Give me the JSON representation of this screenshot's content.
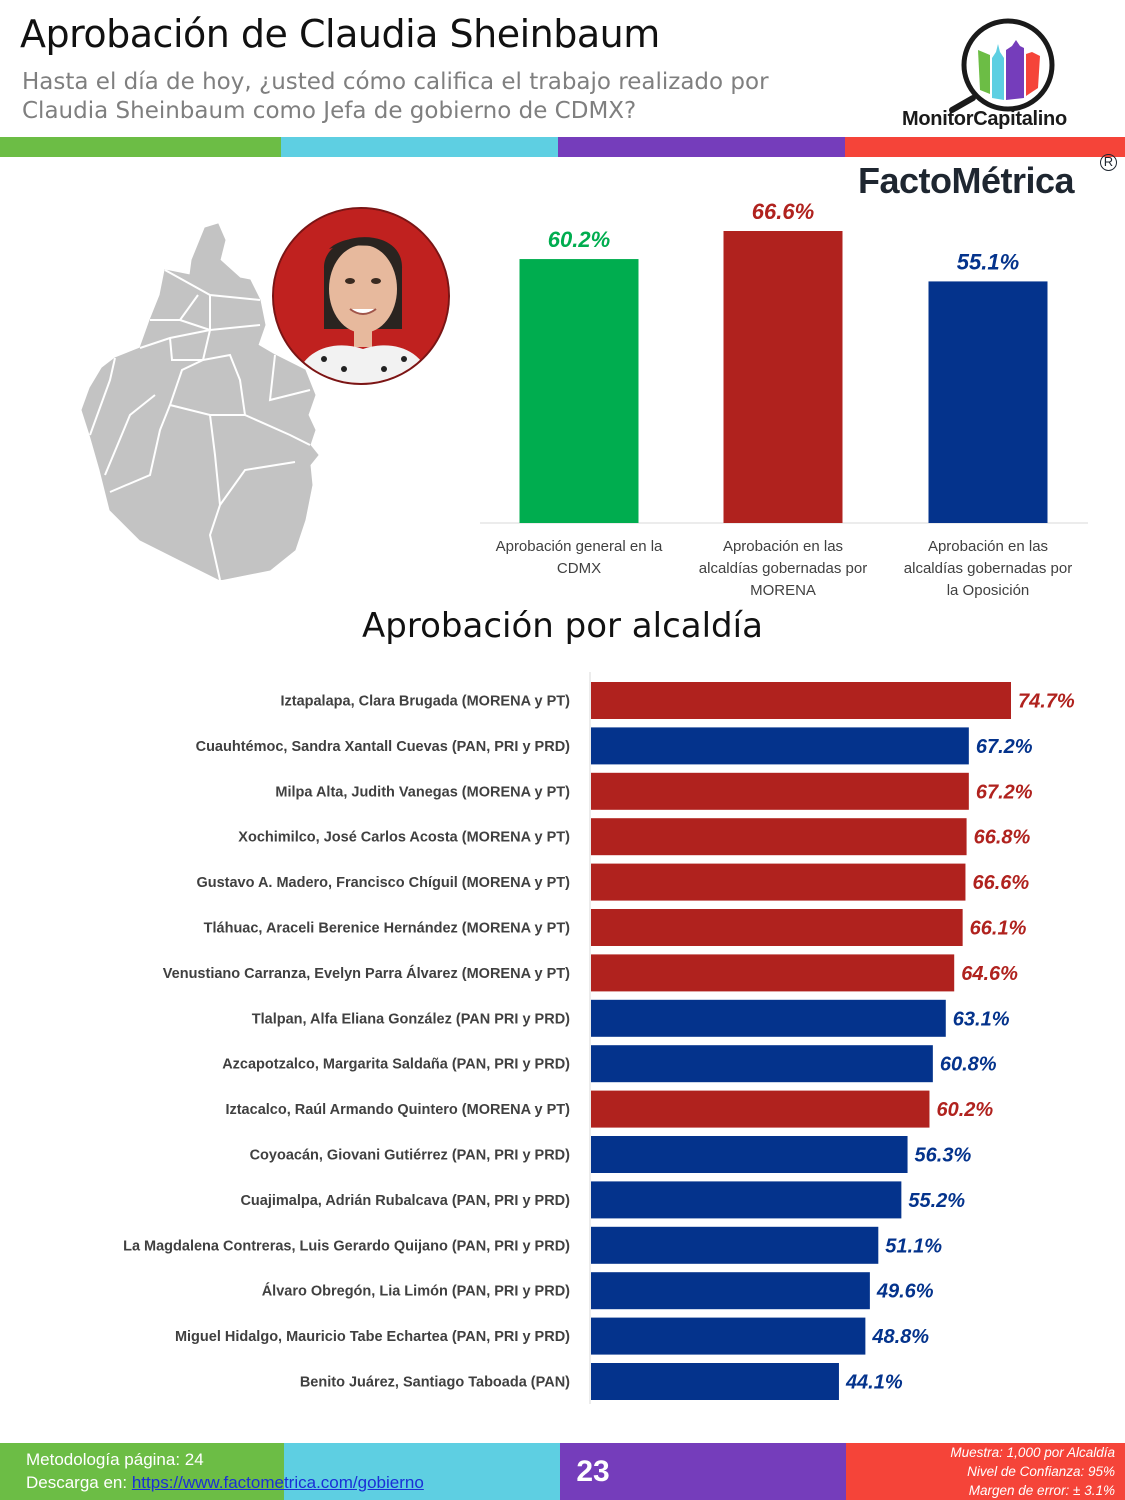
{
  "header": {
    "title": "Aprobación de Claudia Sheinbaum",
    "subtitle_line1": "Hasta el día de hoy, ¿usted cómo califica el trabajo realizado por",
    "subtitle_line2": "Claudia Sheinbaum como Jefa de gobierno de CDMX?",
    "stripe_colors": [
      "#6cbd45",
      "#5ecfe2",
      "#753dbb",
      "#f54439"
    ]
  },
  "logos": {
    "monitor": "MonitorCapitalino",
    "facto": "FactoMétrica",
    "registered": "R"
  },
  "colors": {
    "green": "#00ad4f",
    "red": "#b0221e",
    "blue": "#04338c",
    "label": "#404040"
  },
  "chart_data": [
    {
      "type": "bar",
      "title": "",
      "categories": [
        "Aprobación general en la CDMX",
        "Aprobación en las alcaldías gobernadas por MORENA",
        "Aprobación en las alcaldías gobernadas por la Oposición"
      ],
      "values": [
        60.2,
        66.6,
        55.1
      ],
      "labels": [
        "60.2%",
        "66.6%",
        "55.1%"
      ],
      "colors": [
        "#00ad4f",
        "#b0221e",
        "#04338c"
      ],
      "ylim": [
        0,
        80
      ],
      "grid": false,
      "xlabel": "",
      "ylabel": ""
    },
    {
      "type": "bar",
      "orientation": "horizontal",
      "title": "Aprobación por alcaldía",
      "categories": [
        "Iztapalapa,  Clara Brugada (MORENA y PT)",
        "Cuauhtémoc, Sandra Xantall Cuevas (PAN, PRI y PRD)",
        "Milpa Alta, Judith Vanegas (MORENA y PT)",
        "Xochimilco, José Carlos Acosta (MORENA y PT)",
        "Gustavo A. Madero, Francisco Chíguil (MORENA y PT)",
        "Tláhuac,  Araceli Berenice Hernández (MORENA y PT)",
        "Venustiano Carranza, Evelyn Parra Álvarez (MORENA y PT)",
        "Tlalpan, Alfa Eliana González (PAN PRI y PRD)",
        "Azcapotzalco, Margarita Saldaña (PAN, PRI y PRD)",
        "Iztacalco, Raúl Armando Quintero (MORENA y PT)",
        "Coyoacán,  Giovani Gutiérrez (PAN, PRI y PRD)",
        "Cuajimalpa, Adrián Rubalcava (PAN, PRI y PRD)",
        "La Magdalena Contreras, Luis Gerardo Quijano (PAN, PRI y PRD)",
        "Álvaro Obregón, Lia Limón (PAN, PRI y PRD)",
        "Miguel Hidalgo, Mauricio Tabe Echartea (PAN, PRI y PRD)",
        "Benito Juárez, Santiago Taboada (PAN)"
      ],
      "values": [
        74.7,
        67.2,
        67.2,
        66.8,
        66.6,
        66.1,
        64.6,
        63.1,
        60.8,
        60.2,
        56.3,
        55.2,
        51.1,
        49.6,
        48.8,
        44.1
      ],
      "labels": [
        "74.7%",
        "67.2%",
        "67.2%",
        "66.8%",
        "66.6%",
        "66.1%",
        "64.6%",
        "63.1%",
        "60.8%",
        "60.2%",
        "56.3%",
        "55.2%",
        "51.1%",
        "49.6%",
        "48.8%",
        "44.1%"
      ],
      "groups": [
        "morena",
        "oposicion",
        "morena",
        "morena",
        "morena",
        "morena",
        "morena",
        "oposicion",
        "oposicion",
        "morena",
        "oposicion",
        "oposicion",
        "oposicion",
        "oposicion",
        "oposicion",
        "oposicion"
      ],
      "group_colors": {
        "morena": "#b0221e",
        "oposicion": "#04338c"
      },
      "xlim": [
        0,
        80
      ],
      "grid": false
    }
  ],
  "footer": {
    "methodology": "Metodología página: 24",
    "download_prefix": "Descarga en: ",
    "download_link": "https://www.factometrica.com/gobierno",
    "page_number": "23",
    "sample": "Muestra:  1,000 por Alcaldía",
    "confidence": "Nivel de Confianza: 95%",
    "margin": "Margen de error: ± 3.1%"
  }
}
